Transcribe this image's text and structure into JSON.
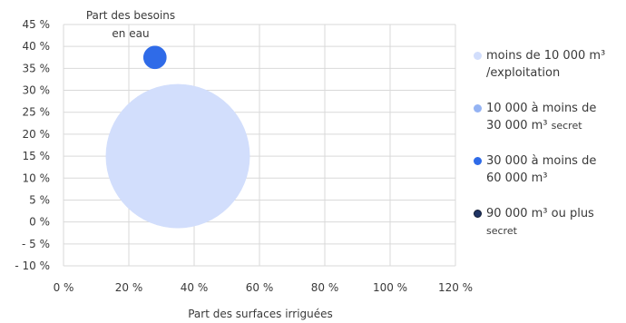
{
  "chart_data": {
    "type": "scatter",
    "title": "",
    "ylabel": "Part des besoins en eau",
    "xlabel": "Part des surfaces irriguées",
    "xlim": [
      0,
      120
    ],
    "ylim": [
      -10,
      45
    ],
    "x_ticks": [
      "0 %",
      "20 %",
      "40 %",
      "60 %",
      "80 %",
      "100 %",
      "120 %"
    ],
    "y_ticks": [
      "45 %",
      "40 %",
      "35 %",
      "30 %",
      "25 %",
      "20 %",
      "15 %",
      "10 %",
      "5 %",
      "0 %",
      "- 5 %",
      "- 10 %"
    ],
    "grid": true,
    "legend_position": "right",
    "series": [
      {
        "name": "moins de 10 000 m³ /exploitation",
        "name_lines": [
          "moins de 10 000 m³",
          "/exploitation"
        ],
        "note": "",
        "color": "#d2defc",
        "border": "#d2defc",
        "points": [
          {
            "x": 35,
            "y": 15,
            "size": 22
          }
        ]
      },
      {
        "name": "10 000 à moins de 30 000 m³",
        "name_lines": [
          "10 000 à moins de",
          "30 000 m³"
        ],
        "note": "secret",
        "color": "#94b3f3",
        "border": "#94b3f3",
        "points": []
      },
      {
        "name": "30 000 à moins de 60 000 m³",
        "name_lines": [
          "30 000 à moins de",
          "60 000 m³"
        ],
        "note": "",
        "color": "#2f6be8",
        "border": "#2f6be8",
        "points": [
          {
            "x": 28,
            "y": 37.5,
            "size": 3.5
          }
        ]
      },
      {
        "name": "90 000 m³ ou plus",
        "name_lines": [
          "90 000 m³ ou plus"
        ],
        "note": "secret",
        "color": "#1f3464",
        "border": "#111b33",
        "points": []
      }
    ]
  }
}
